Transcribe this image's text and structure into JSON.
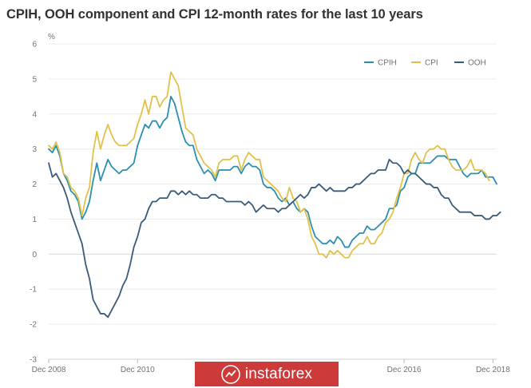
{
  "chart_data": {
    "type": "line",
    "title": "CPIH, OOH component and CPI 12-month rates for the last 10 years",
    "ylabel": "%",
    "xlabel": "",
    "ylim": [
      -3,
      6
    ],
    "yticks": [
      "6",
      "5",
      "4",
      "3",
      "2",
      "1",
      "0",
      "-1",
      "-2",
      "-3"
    ],
    "xticks": [
      "Dec 2008",
      "Dec 2010",
      "Dec 2016",
      "Dec 2018"
    ],
    "xtick_positions": [
      0,
      24,
      96,
      120
    ],
    "grid": true,
    "legend_position": "top-right",
    "series": [
      {
        "name": "CPIH",
        "color": "#2a8fb0",
        "values": [
          3.0,
          2.9,
          3.1,
          2.8,
          2.3,
          2.1,
          1.8,
          1.7,
          1.5,
          1.0,
          1.2,
          1.5,
          2.1,
          2.6,
          2.1,
          2.4,
          2.7,
          2.5,
          2.4,
          2.3,
          2.4,
          2.4,
          2.5,
          2.6,
          3.1,
          3.4,
          3.7,
          3.6,
          3.8,
          3.8,
          3.6,
          3.8,
          3.9,
          4.5,
          4.3,
          3.9,
          3.5,
          3.2,
          3.1,
          3.1,
          2.7,
          2.5,
          2.3,
          2.4,
          2.3,
          2.1,
          2.4,
          2.4,
          2.4,
          2.4,
          2.5,
          2.5,
          2.3,
          2.5,
          2.6,
          2.5,
          2.5,
          2.4,
          2.0,
          1.9,
          1.9,
          1.8,
          1.6,
          1.5,
          1.6,
          1.4,
          1.5,
          1.3,
          1.2,
          1.3,
          1.2,
          0.8,
          0.5,
          0.4,
          0.3,
          0.3,
          0.4,
          0.3,
          0.5,
          0.4,
          0.2,
          0.2,
          0.4,
          0.5,
          0.6,
          0.6,
          0.8,
          0.7,
          0.7,
          0.8,
          0.9,
          1.0,
          1.3,
          1.3,
          1.4,
          1.8,
          1.9,
          2.2,
          2.3,
          2.3,
          2.6,
          2.6,
          2.6,
          2.6,
          2.7,
          2.8,
          2.8,
          2.8,
          2.7,
          2.7,
          2.7,
          2.5,
          2.3,
          2.2,
          2.3,
          2.3,
          2.3,
          2.4,
          2.2,
          2.2,
          2.2,
          2.0
        ]
      },
      {
        "name": "CPI",
        "color": "#e2c14a",
        "values": [
          3.1,
          3.0,
          3.2,
          2.9,
          2.3,
          2.2,
          1.9,
          1.8,
          1.6,
          1.1,
          1.6,
          1.9,
          2.9,
          3.5,
          3.0,
          3.4,
          3.7,
          3.4,
          3.2,
          3.1,
          3.1,
          3.1,
          3.2,
          3.3,
          3.7,
          4.0,
          4.4,
          4.0,
          4.5,
          4.5,
          4.2,
          4.4,
          4.5,
          5.2,
          5.0,
          4.8,
          4.2,
          3.6,
          3.5,
          3.4,
          3.0,
          2.8,
          2.6,
          2.5,
          2.4,
          2.2,
          2.6,
          2.7,
          2.7,
          2.7,
          2.8,
          2.8,
          2.4,
          2.7,
          2.9,
          2.8,
          2.7,
          2.7,
          2.2,
          2.1,
          2.0,
          1.9,
          1.8,
          1.6,
          1.5,
          1.9,
          1.6,
          1.5,
          1.2,
          1.3,
          1.0,
          0.5,
          0.3,
          0.0,
          0.0,
          -0.1,
          0.1,
          0.0,
          0.1,
          0.0,
          -0.1,
          -0.1,
          0.1,
          0.2,
          0.3,
          0.3,
          0.5,
          0.3,
          0.3,
          0.5,
          0.6,
          0.9,
          1.0,
          1.2,
          1.6,
          1.9,
          2.3,
          2.3,
          2.7,
          2.9,
          2.7,
          2.6,
          2.9,
          3.0,
          3.0,
          3.1,
          3.0,
          3.0,
          2.7,
          2.5,
          2.4,
          2.4,
          2.4,
          2.5,
          2.7,
          2.4,
          2.4,
          2.4,
          2.3,
          2.1
        ]
      },
      {
        "name": "OOH",
        "color": "#3a5a78",
        "values": [
          2.6,
          2.2,
          2.3,
          2.1,
          1.9,
          1.6,
          1.2,
          0.9,
          0.6,
          0.3,
          -0.3,
          -0.7,
          -1.3,
          -1.5,
          -1.7,
          -1.7,
          -1.8,
          -1.6,
          -1.4,
          -1.2,
          -0.9,
          -0.7,
          -0.3,
          0.2,
          0.5,
          0.9,
          1.0,
          1.3,
          1.5,
          1.5,
          1.6,
          1.6,
          1.6,
          1.8,
          1.8,
          1.7,
          1.8,
          1.7,
          1.8,
          1.7,
          1.7,
          1.6,
          1.6,
          1.6,
          1.7,
          1.7,
          1.6,
          1.6,
          1.5,
          1.5,
          1.5,
          1.5,
          1.5,
          1.4,
          1.5,
          1.4,
          1.2,
          1.3,
          1.4,
          1.3,
          1.3,
          1.3,
          1.2,
          1.3,
          1.3,
          1.4,
          1.5,
          1.6,
          1.7,
          1.6,
          1.7,
          1.9,
          1.9,
          2.0,
          1.9,
          1.8,
          1.9,
          1.8,
          1.8,
          1.8,
          1.8,
          1.9,
          1.9,
          2.0,
          2.0,
          2.1,
          2.2,
          2.3,
          2.3,
          2.4,
          2.4,
          2.4,
          2.7,
          2.6,
          2.6,
          2.5,
          2.3,
          2.4,
          2.3,
          2.3,
          2.2,
          2.1,
          2.0,
          2.0,
          1.9,
          1.9,
          1.7,
          1.6,
          1.6,
          1.4,
          1.3,
          1.2,
          1.2,
          1.2,
          1.2,
          1.1,
          1.1,
          1.1,
          1.0,
          1.0,
          1.1,
          1.1,
          1.2
        ]
      }
    ]
  },
  "watermark": {
    "text": "instaforex",
    "color": "#cc3a3a",
    "icon": "instaforex-logo-icon"
  }
}
